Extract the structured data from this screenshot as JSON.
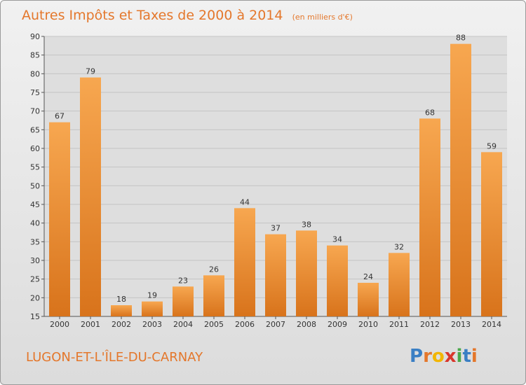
{
  "title": "Autres Impôts et Taxes de 2000 à 2014",
  "subtitle": "(en milliers d'€)",
  "commune": "LUGON-ET-L'ÎLE-DU-CARNAY",
  "logo": {
    "letters": [
      "P",
      "r",
      "o",
      "x",
      "i",
      "t",
      "i"
    ],
    "colors": [
      "#3a7fc4",
      "#e4772b",
      "#f2b600",
      "#d9362b",
      "#4aa84a",
      "#3a7fc4",
      "#e4772b"
    ]
  },
  "colors": {
    "bar_top": "#f7a750",
    "bar_bottom": "#d8731b",
    "accent": "#e4772b"
  },
  "chart_data": {
    "type": "bar",
    "categories": [
      "2000",
      "2001",
      "2002",
      "2003",
      "2004",
      "2005",
      "2006",
      "2007",
      "2008",
      "2009",
      "2010",
      "2011",
      "2012",
      "2013",
      "2014"
    ],
    "values": [
      67,
      79,
      18,
      19,
      23,
      26,
      44,
      37,
      38,
      34,
      24,
      32,
      68,
      88,
      59
    ],
    "ylim": [
      15,
      90
    ],
    "yticks": [
      15,
      20,
      25,
      30,
      35,
      40,
      45,
      50,
      55,
      60,
      65,
      70,
      75,
      80,
      85,
      90
    ],
    "grid": true
  }
}
